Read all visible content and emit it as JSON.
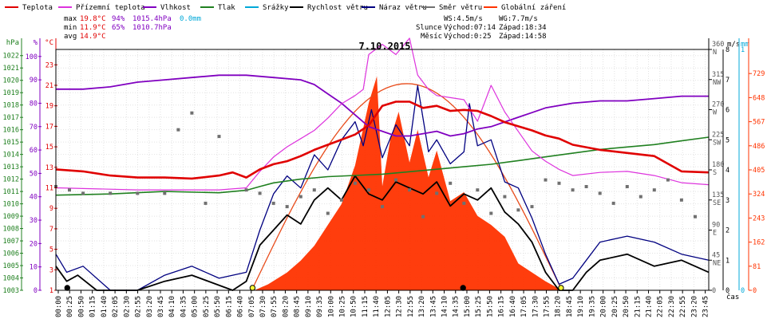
{
  "legend": [
    {
      "label": "Teplota",
      "color": "#e00000"
    },
    {
      "label": "Přízemní teplota",
      "color": "#dd33dd"
    },
    {
      "label": "Vlhkost",
      "color": "#8000c0"
    },
    {
      "label": "Tlak",
      "color": "#208020"
    },
    {
      "label": "Srážky",
      "color": "#00a8d8"
    },
    {
      "label": "Rychlost větru",
      "color": "#000000"
    },
    {
      "label": "Náraz větru",
      "color": "#000080"
    },
    {
      "label": "Směr větru",
      "color": "#707070"
    },
    {
      "label": "Globální záření",
      "color": "#ff3300"
    }
  ],
  "stats": {
    "max": {
      "label": "max",
      "temp": "19.8°C",
      "hum": "94%",
      "press": "1015.4hPa",
      "rain": "0.0mm"
    },
    "min": {
      "label": "min",
      "temp": "11.9°C",
      "hum": "65%",
      "press": "1010.7hPa"
    },
    "avg": {
      "label": "avg",
      "temp": "14.9°C"
    }
  },
  "wind_info": {
    "ws": "WS:4.5m/s",
    "wg": "WG:7.7m/s"
  },
  "sun": {
    "label": "Slunce",
    "rise": "Východ:07:14",
    "set": "Západ:18:34"
  },
  "moon": {
    "label": "Měsíc",
    "rise": "Východ:0:25",
    "set": "Západ:14:58"
  },
  "chart_data": {
    "type": "line",
    "title": "7.10.2015",
    "xlabel": "čas",
    "x_ticks": [
      "00:00",
      "00:25",
      "00:50",
      "01:15",
      "01:40",
      "02:05",
      "02:30",
      "02:55",
      "03:20",
      "03:45",
      "04:10",
      "04:35",
      "05:00",
      "05:25",
      "05:50",
      "06:15",
      "06:40",
      "07:05",
      "07:30",
      "07:55",
      "08:20",
      "08:45",
      "09:10",
      "09:35",
      "10:00",
      "10:25",
      "10:50",
      "11:15",
      "11:40",
      "12:05",
      "12:30",
      "12:55",
      "13:20",
      "13:45",
      "14:10",
      "14:35",
      "15:00",
      "15:25",
      "15:50",
      "16:15",
      "16:40",
      "17:05",
      "17:30",
      "17:55",
      "18:20",
      "18:45",
      "19:10",
      "19:35",
      "20:00",
      "20:25",
      "20:50",
      "21:15",
      "21:40",
      "22:05",
      "22:30",
      "22:55",
      "23:20",
      "23:45"
    ],
    "axes": {
      "hpa": {
        "unit": "hPa",
        "ticks": [
          "1003",
          "1004",
          "1005",
          "1006",
          "1007",
          "1008",
          "1009",
          "1010",
          "1011",
          "1012",
          "1013",
          "1014",
          "1015",
          "1016",
          "1017",
          "1018",
          "1019",
          "1020",
          "1021",
          "1022"
        ],
        "range": [
          1003,
          1022.5
        ]
      },
      "percent": {
        "unit": "%",
        "ticks": [
          "0",
          "10",
          "20",
          "30",
          "40",
          "50",
          "60",
          "70",
          "80",
          "90",
          "100"
        ],
        "range": [
          0,
          103
        ]
      },
      "celsius": {
        "unit": "°C",
        "ticks": [
          "1",
          "3",
          "5",
          "7",
          "9",
          "11",
          "13",
          "15",
          "17",
          "19",
          "21",
          "23"
        ],
        "range": [
          1,
          24.5
        ]
      },
      "wind_dir": {
        "unit": "m/s",
        "ticks": [
          "0",
          "45 NE",
          "90 E",
          "135 SE",
          "180 S",
          "225 SW",
          "270 W",
          "315 NW",
          "360 N"
        ],
        "range": [
          0,
          360
        ]
      },
      "rain": {
        "unit": "mm",
        "ticks": [
          "0",
          "1"
        ],
        "range": [
          0,
          1
        ]
      },
      "radiation": {
        "unit": "W/m²",
        "ticks": [
          "0",
          "81",
          "162",
          "243",
          "324",
          "405",
          "486",
          "567",
          "648",
          "729"
        ],
        "range": [
          0,
          810
        ]
      },
      "wind_speed": {
        "ticks": [
          "0",
          "1",
          "2",
          "3",
          "4",
          "5",
          "6",
          "7",
          "8"
        ],
        "range": [
          0,
          8
        ]
      }
    },
    "series": [
      {
        "name": "Teplota",
        "unit": "°C",
        "color": "#e00000",
        "x_hours": [
          0,
          1,
          2,
          3,
          4,
          5,
          6,
          6.5,
          7,
          7.5,
          8,
          8.5,
          9,
          9.5,
          10,
          10.5,
          11,
          11.5,
          12,
          12.5,
          13,
          13.5,
          14,
          14.5,
          15,
          15.5,
          16,
          16.5,
          17,
          17.5,
          18,
          18.5,
          19,
          20,
          21,
          22,
          23,
          24
        ],
        "values": [
          12.8,
          12.6,
          12.2,
          12.0,
          12.0,
          11.9,
          12.2,
          12.5,
          12.0,
          12.8,
          13.3,
          13.6,
          14.1,
          14.7,
          15.2,
          15.7,
          16.2,
          17.1,
          19.0,
          19.4,
          19.4,
          18.8,
          19.0,
          18.5,
          18.6,
          18.5,
          18.0,
          17.4,
          17.0,
          16.6,
          16.1,
          15.8,
          15.2,
          14.7,
          14.4,
          14.1,
          12.6,
          12.5
        ]
      },
      {
        "name": "Přízemní teplota",
        "unit": "°C",
        "color": "#dd33dd",
        "x_hours": [
          0,
          3,
          6,
          7,
          7.5,
          8,
          8.5,
          9,
          9.5,
          10,
          10.5,
          11,
          11.3,
          11.5,
          12,
          12.5,
          13,
          13.3,
          13.7,
          14,
          14.5,
          15,
          15.5,
          16,
          16.5,
          17,
          17.5,
          18,
          18.5,
          19,
          20,
          21,
          22,
          23,
          24
        ],
        "values": [
          11.0,
          10.8,
          10.8,
          11.0,
          12.6,
          14.0,
          15.0,
          15.8,
          16.6,
          17.8,
          19.2,
          20.0,
          20.6,
          24.0,
          25.0,
          24.0,
          25.6,
          22.0,
          20.6,
          20.0,
          19.8,
          19.6,
          17.5,
          21.0,
          18.4,
          16.5,
          14.6,
          13.6,
          12.8,
          12.2,
          12.5,
          12.6,
          12.2,
          11.5,
          11.3
        ]
      },
      {
        "name": "Vlhkost",
        "unit": "%",
        "color": "#8000c0",
        "x_hours": [
          0,
          1,
          2,
          3,
          4,
          5,
          6,
          7,
          8,
          9,
          9.5,
          10,
          10.5,
          11,
          11.5,
          12,
          12.5,
          13,
          13.5,
          14,
          14.5,
          15,
          15.5,
          16,
          16.5,
          17,
          17.5,
          18,
          19,
          20,
          21,
          22,
          23,
          24
        ],
        "values": [
          86,
          86,
          87,
          89,
          90,
          91,
          92,
          92,
          91,
          90,
          88,
          84,
          80,
          75,
          70,
          68,
          66,
          66,
          67,
          68,
          66,
          67,
          69,
          70,
          72,
          74,
          76,
          78,
          80,
          81,
          81,
          82,
          83,
          83
        ]
      },
      {
        "name": "Tlak",
        "unit": "hPa",
        "color": "#208020",
        "x_hours": [
          0,
          2,
          4,
          6,
          7,
          7.5,
          8,
          9,
          10,
          11,
          12,
          13,
          14,
          15,
          16,
          17,
          18,
          19,
          20,
          21,
          22,
          23,
          24
        ],
        "values": [
          1010.7,
          1010.8,
          1011.0,
          1010.9,
          1011.1,
          1011.4,
          1011.7,
          1012.0,
          1012.2,
          1012.3,
          1012.4,
          1012.6,
          1012.8,
          1013.0,
          1013.2,
          1013.5,
          1013.8,
          1014.1,
          1014.4,
          1014.6,
          1014.8,
          1015.1,
          1015.4
        ]
      },
      {
        "name": "Globální záření",
        "unit": "W/m²",
        "color": "#ff3300",
        "x_hours": [
          0,
          7.3,
          7.8,
          8.5,
          9,
          9.5,
          10,
          10.5,
          11,
          11.5,
          11.8,
          12,
          12.3,
          12.6,
          13,
          13.3,
          13.7,
          14,
          14.5,
          15,
          15.5,
          16,
          16.5,
          17,
          17.5,
          18,
          18.6,
          24
        ],
        "values": [
          0,
          0,
          20,
          60,
          100,
          150,
          220,
          290,
          420,
          630,
          720,
          350,
          510,
          600,
          430,
          540,
          380,
          470,
          300,
          330,
          250,
          220,
          180,
          90,
          60,
          30,
          0,
          0
        ]
      },
      {
        "name": "Rychlost větru",
        "unit": "m/s",
        "color": "#000000",
        "x_hours": [
          0,
          0.4,
          0.8,
          1.5,
          3,
          4,
          5,
          6.5,
          7,
          7.5,
          8,
          8.5,
          9,
          9.5,
          10,
          10.5,
          11,
          11.5,
          12,
          12.5,
          13,
          13.5,
          14,
          14.5,
          15,
          15.5,
          16,
          16.5,
          17,
          17.5,
          18,
          18.5,
          19,
          19.5,
          20,
          21,
          22,
          23,
          24
        ],
        "values": [
          0.8,
          0.3,
          0.5,
          0.0,
          0.0,
          0.3,
          0.5,
          0.0,
          0.3,
          1.5,
          2.0,
          2.5,
          2.2,
          3.0,
          3.4,
          3.0,
          3.8,
          3.2,
          3.0,
          3.6,
          3.4,
          3.2,
          3.6,
          2.8,
          3.2,
          3.0,
          3.4,
          2.6,
          2.2,
          1.6,
          0.6,
          0.0,
          0.0,
          0.6,
          1.0,
          1.2,
          0.8,
          1.0,
          0.6
        ]
      },
      {
        "name": "Náraz větru",
        "unit": "m/s",
        "color": "#000080",
        "x_hours": [
          0,
          0.4,
          1,
          2,
          3,
          4,
          5,
          6,
          7,
          7.5,
          8,
          8.5,
          9,
          9.5,
          10,
          10.5,
          11,
          11.3,
          11.6,
          12,
          12.5,
          13,
          13.3,
          13.7,
          14,
          14.5,
          15,
          15.2,
          15.5,
          16,
          16.5,
          17,
          17.5,
          18,
          18.5,
          19,
          19.5,
          20,
          21,
          22,
          23,
          24
        ],
        "values": [
          1.2,
          0.6,
          0.8,
          0.0,
          0.0,
          0.5,
          0.8,
          0.4,
          0.6,
          2.0,
          3.2,
          3.8,
          3.4,
          4.5,
          4.0,
          5.0,
          5.6,
          4.8,
          6.0,
          4.4,
          5.5,
          4.8,
          6.8,
          4.6,
          5.0,
          4.2,
          4.6,
          6.2,
          4.8,
          5.0,
          3.6,
          3.4,
          2.4,
          1.2,
          0.2,
          0.4,
          1.0,
          1.6,
          1.8,
          1.6,
          1.2,
          1.0
        ]
      },
      {
        "name": "Směr větru",
        "unit": "°",
        "color": "#707070",
        "x_hours": [
          0,
          0.5,
          1,
          2,
          3,
          4,
          4.5,
          5,
          5.5,
          6,
          7,
          7.5,
          8,
          8.5,
          9,
          9.5,
          10,
          10.5,
          11,
          11.5,
          12,
          12.5,
          13,
          13.5,
          14,
          14.5,
          15,
          15.5,
          16,
          16.5,
          17,
          17.5,
          18,
          18.5,
          19,
          19.5,
          20,
          20.5,
          21,
          21.5,
          22,
          22.5,
          23,
          23.5
        ],
        "values": [
          155,
          150,
          145,
          145,
          145,
          145,
          240,
          265,
          130,
          230,
          150,
          145,
          130,
          125,
          140,
          150,
          115,
          135,
          160,
          150,
          125,
          165,
          150,
          110,
          145,
          160,
          130,
          150,
          115,
          140,
          120,
          125,
          165,
          160,
          150,
          155,
          145,
          130,
          155,
          140,
          150,
          165,
          135,
          110
        ]
      }
    ],
    "sun_curve": {
      "start_hours": 7.2,
      "end_hours": 18.6,
      "peak": 695
    },
    "markers": [
      {
        "name": "sunrise",
        "x_hours": 7.23,
        "value": 0
      },
      {
        "name": "sunset",
        "x_hours": 18.57,
        "value": 0
      },
      {
        "name": "moonrise",
        "x_hours": 0.42,
        "value": 0
      },
      {
        "name": "moonset",
        "x_hours": 14.97,
        "value": 0
      }
    ]
  }
}
